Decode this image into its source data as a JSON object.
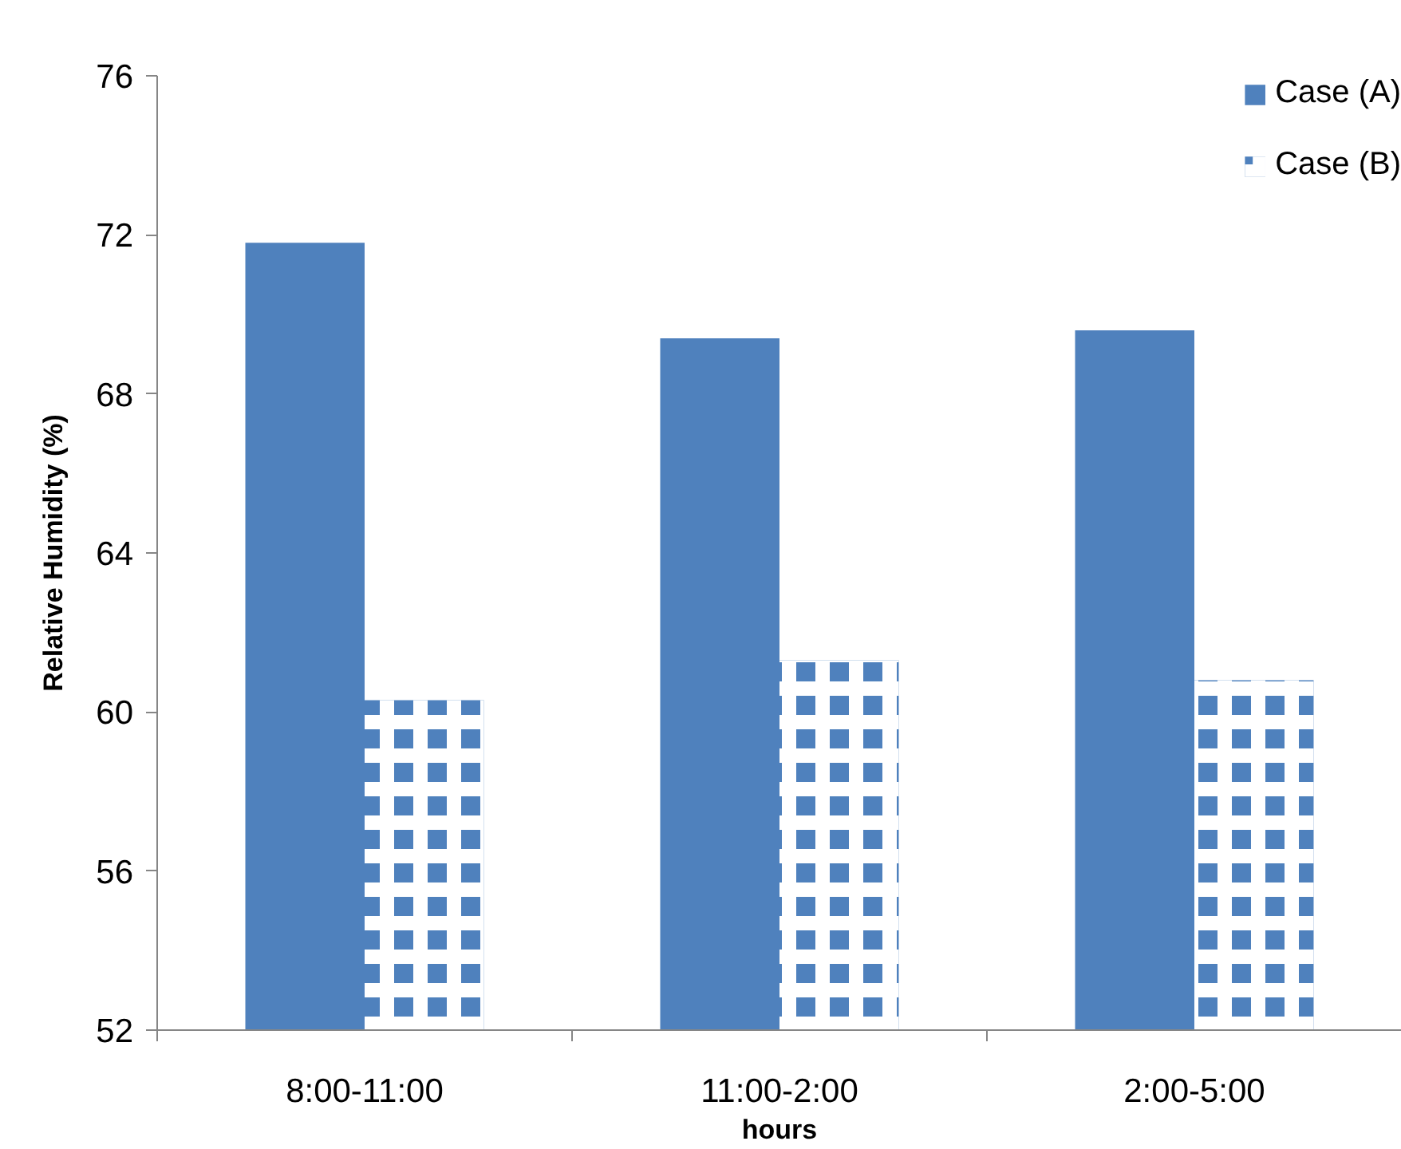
{
  "chart_data": {
    "type": "bar",
    "xlabel": "hours",
    "ylabel": "Relative Humidity (%)",
    "categories": [
      "8:00-11:00",
      "11:00-2:00",
      "2:00-5:00"
    ],
    "series": [
      {
        "name": "Case (A)",
        "color": "#4f81bd",
        "values": [
          71.8,
          69.4,
          69.6
        ]
      },
      {
        "name": "Case (B)",
        "color": "#4f81bd",
        "values": [
          60.3,
          61.3,
          60.8
        ]
      }
    ],
    "ylim": [
      52,
      76
    ],
    "yticks": [
      52,
      56,
      60,
      64,
      68,
      72,
      76
    ],
    "legend": "top right"
  }
}
